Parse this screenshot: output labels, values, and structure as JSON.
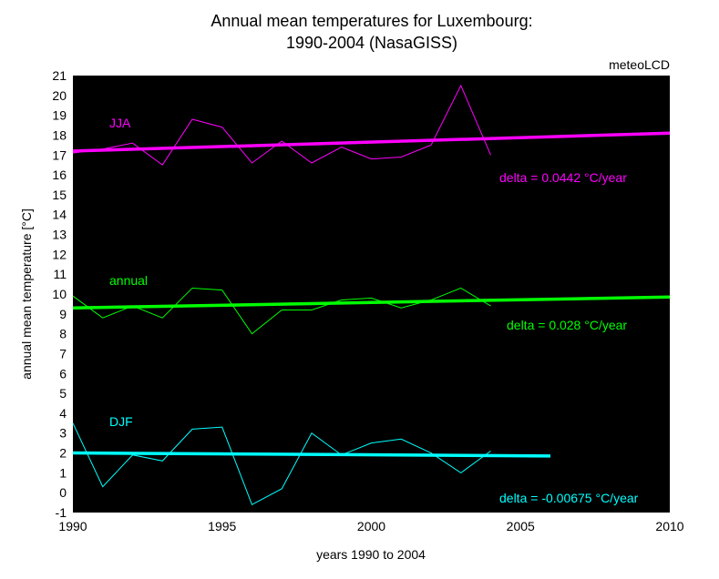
{
  "chart_data": {
    "type": "line",
    "title_line1": "Annual mean temperatures for Luxembourg:",
    "title_line2": "1990-2004 (NasaGISS)",
    "source_label": "meteoLCD",
    "xlabel": "years 1990 to 2004",
    "ylabel": "annual mean temperature [°C]",
    "xlim": [
      1990,
      2010
    ],
    "ylim": [
      -1,
      21
    ],
    "xticks": [
      1990,
      1995,
      2000,
      2005,
      2010
    ],
    "yticks": [
      -1,
      0,
      1,
      2,
      3,
      4,
      5,
      6,
      7,
      8,
      9,
      10,
      11,
      12,
      13,
      14,
      15,
      16,
      17,
      18,
      19,
      20,
      21
    ],
    "background": "#000000",
    "grid": false,
    "x": [
      1990,
      1991,
      1992,
      1993,
      1994,
      1995,
      1996,
      1997,
      1998,
      1999,
      2000,
      2001,
      2002,
      2003,
      2004
    ],
    "series": [
      {
        "name": "JJA",
        "color": "#ff00ff",
        "values": [
          17.1,
          17.3,
          17.6,
          16.5,
          18.8,
          18.4,
          16.6,
          17.7,
          16.6,
          17.4,
          16.8,
          16.9,
          17.5,
          20.5,
          17.0
        ],
        "trend": {
          "x": [
            1990,
            2010
          ],
          "y": [
            17.2,
            18.1
          ]
        },
        "annotation": "delta = 0.0442 °C/year"
      },
      {
        "name": "annual",
        "color": "#00ff00",
        "values": [
          9.9,
          8.8,
          9.4,
          8.8,
          10.3,
          10.2,
          8.0,
          9.2,
          9.2,
          9.7,
          9.8,
          9.3,
          9.7,
          10.3,
          9.4
        ],
        "trend": {
          "x": [
            1990,
            2010
          ],
          "y": [
            9.3,
            9.85
          ]
        },
        "annotation": "delta = 0.028 °C/year"
      },
      {
        "name": "DJF",
        "color": "#00ffff",
        "values": [
          3.5,
          0.3,
          1.9,
          1.6,
          3.2,
          3.3,
          -0.6,
          0.2,
          3.0,
          1.9,
          2.5,
          2.7,
          2.0,
          1.0,
          2.1
        ],
        "trend": {
          "x": [
            1990,
            2006
          ],
          "y": [
            2.0,
            1.85
          ]
        },
        "annotation": "delta = -0.00675 °C/year"
      }
    ]
  }
}
